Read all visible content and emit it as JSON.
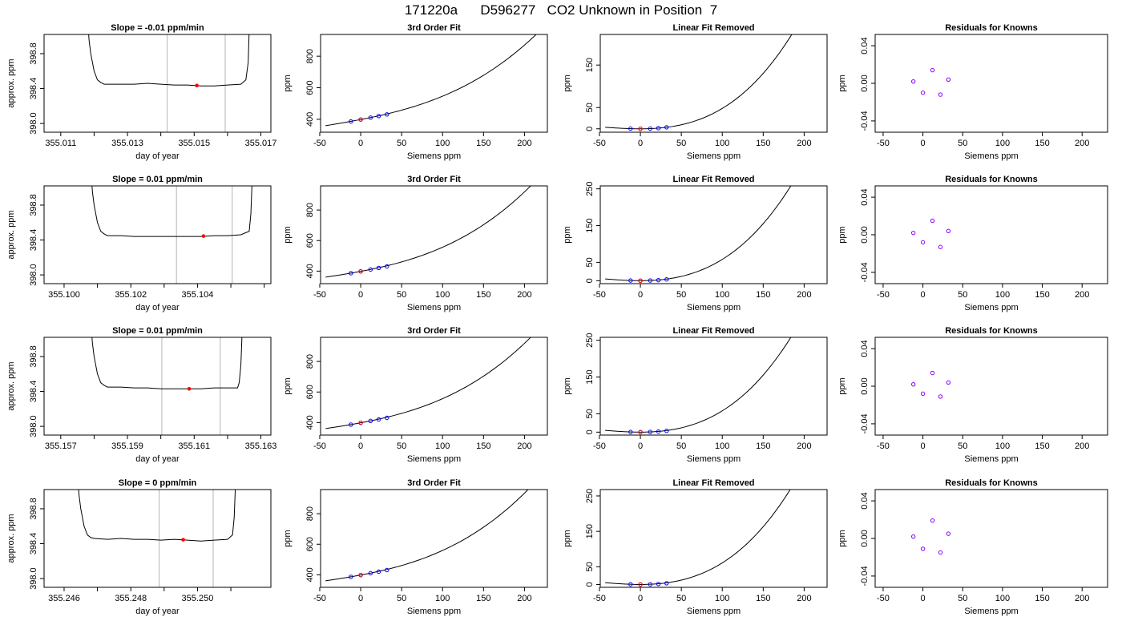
{
  "figure": {
    "title": "171220a      D596277   CO2 Unknown in Position  7"
  },
  "styles": {
    "trace_color": "#000000",
    "marker_color": "#ff0000",
    "known_color": "#0000ff",
    "residual_color": "#8800ff",
    "window_line_color": "#c0c0c0"
  },
  "chart_data": [
    {
      "id": "r1-trace",
      "type": "line",
      "title": "Slope =  -0.01  ppm/min",
      "xlabel": "day of year",
      "ylabel": "approx. ppm",
      "xlim": [
        355.0105,
        355.0173
      ],
      "ylim": [
        397.9,
        399.02
      ],
      "xticks": [
        355.011,
        355.012,
        355.013,
        355.014,
        355.015,
        355.016,
        355.017
      ],
      "xtick_labels": [
        "355.011",
        "",
        "355.013",
        "",
        "355.015",
        "",
        "355.017"
      ],
      "yticks": [
        398.0,
        398.4,
        398.8
      ],
      "ytick_labels": [
        "398.0",
        "398.4",
        "398.8"
      ],
      "window_lines": [
        355.01419,
        355.01593
      ],
      "marker": [
        355.01508,
        398.435
      ],
      "series": [
        {
          "x": [
            355.0118,
            355.01185,
            355.0119,
            355.012,
            355.0121,
            355.0122,
            355.0123,
            355.0124,
            355.0128,
            355.0132,
            355.0136,
            355.014,
            355.0144,
            355.0148,
            355.0152,
            355.0156,
            355.016,
            355.0164,
            355.01655,
            355.01662,
            355.01666
          ],
          "y": [
            399.2,
            398.95,
            398.8,
            398.6,
            398.5,
            398.47,
            398.45,
            398.45,
            398.45,
            398.45,
            398.46,
            398.45,
            398.44,
            398.44,
            398.43,
            398.43,
            398.44,
            398.45,
            398.5,
            398.7,
            399.2
          ]
        }
      ]
    },
    {
      "id": "r1-fit",
      "type": "line",
      "title": "3rd Order Fit",
      "xlabel": "Siemens ppm",
      "ylabel": "ppm",
      "xlim": [
        -49,
        228
      ],
      "ylim": [
        318,
        938
      ],
      "xticks": [
        -50,
        0,
        50,
        100,
        150,
        200
      ],
      "xtick_labels": [
        "-50",
        "0",
        "50",
        "100",
        "150",
        "200"
      ],
      "yticks": [
        400,
        600,
        800
      ],
      "ytick_labels": [
        "400",
        "600",
        "800"
      ],
      "curve": {
        "x0": -43,
        "x1": 218,
        "c0": 398.4,
        "c1": 1.0,
        "c2": 0.0028,
        "c3": 2e-05
      },
      "knowns": {
        "x": [
          -12,
          0,
          12,
          22,
          32
        ],
        "y": [
          386.4,
          398.4,
          410.4,
          420.6,
          430.8
        ]
      },
      "unknown": [
        0,
        398.4
      ]
    },
    {
      "id": "r1-linear",
      "type": "line",
      "title": "Linear Fit Removed",
      "xlabel": "Siemens ppm",
      "ylabel": "ppm",
      "xlim": [
        -49,
        228
      ],
      "ylim": [
        -8,
        222
      ],
      "xticks": [
        -50,
        0,
        50,
        100,
        150,
        200
      ],
      "xtick_labels": [
        "-50",
        "0",
        "50",
        "100",
        "150",
        "200"
      ],
      "yticks": [
        0,
        50,
        150
      ],
      "ytick_labels": [
        "0",
        "50",
        "150"
      ],
      "curve": {
        "x0": -43,
        "x1": 218,
        "c0": 0,
        "c1": 0,
        "c2": 0.0028,
        "c3": 2e-05
      },
      "knowns": {
        "x": [
          -12,
          0,
          12,
          22,
          32
        ],
        "y": [
          0.5,
          0,
          0.5,
          1.5,
          3.5
        ]
      },
      "unknown": [
        0,
        0
      ]
    },
    {
      "id": "r1-resid",
      "type": "scatter",
      "title": "Residuals for Knowns",
      "xlabel": "Siemens ppm",
      "ylabel": "ppm",
      "xlim": [
        -60,
        232
      ],
      "ylim": [
        -0.052,
        0.052
      ],
      "xticks": [
        -50,
        0,
        50,
        100,
        150,
        200
      ],
      "xtick_labels": [
        "-50",
        "0",
        "50",
        "100",
        "150",
        "200"
      ],
      "yticks": [
        -0.04,
        0.0,
        0.04
      ],
      "ytick_labels": [
        "-0.04",
        "0.00",
        "0.04"
      ],
      "points": {
        "x": [
          -12,
          0,
          12,
          22,
          32
        ],
        "y": [
          0.002,
          -0.01,
          0.014,
          -0.012,
          0.004
        ]
      }
    },
    {
      "id": "r2-trace",
      "type": "line",
      "title": "Slope =  0.01  ppm/min",
      "xlabel": "day of year",
      "ylabel": "approx. ppm",
      "xlim": [
        355.0994,
        355.1062
      ],
      "ylim": [
        397.9,
        399.02
      ],
      "xticks": [
        355.1,
        355.101,
        355.102,
        355.103,
        355.104,
        355.105,
        355.106
      ],
      "xtick_labels": [
        "355.100",
        "",
        "355.102",
        "",
        "355.104",
        "",
        ""
      ],
      "yticks": [
        398.0,
        398.4,
        398.8
      ],
      "ytick_labels": [
        "398.0",
        "398.4",
        "398.8"
      ],
      "window_lines": [
        355.10337,
        355.10504
      ],
      "marker": [
        355.10418,
        398.445
      ],
      "series": [
        {
          "x": [
            355.1008,
            355.10085,
            355.1009,
            355.101,
            355.1011,
            355.1012,
            355.1013,
            355.1017,
            355.1021,
            355.1025,
            355.1029,
            355.1033,
            355.1037,
            355.1041,
            355.1045,
            355.1049,
            355.1053,
            355.10555,
            355.1056,
            355.10565
          ],
          "y": [
            399.2,
            398.95,
            398.8,
            398.6,
            398.5,
            398.47,
            398.45,
            398.45,
            398.44,
            398.44,
            398.44,
            398.44,
            398.44,
            398.44,
            398.45,
            398.45,
            398.46,
            398.5,
            398.7,
            399.2
          ]
        }
      ]
    },
    {
      "id": "r2-fit",
      "type": "line",
      "title": "3rd Order Fit",
      "xlabel": "Siemens ppm",
      "ylabel": "ppm",
      "xlim": [
        -49,
        228
      ],
      "ylim": [
        318,
        958
      ],
      "xticks": [
        -50,
        0,
        50,
        100,
        150,
        200
      ],
      "xtick_labels": [
        "-50",
        "0",
        "50",
        "100",
        "150",
        "200"
      ],
      "yticks": [
        400,
        600,
        800
      ],
      "ytick_labels": [
        "400",
        "600",
        "800"
      ],
      "curve": {
        "x0": -43,
        "x1": 218,
        "c0": 398.4,
        "c1": 1.0,
        "c2": 0.0036,
        "c3": 2.2e-05
      },
      "knowns": {
        "x": [
          -12,
          0,
          12,
          22,
          32
        ],
        "y": [
          386.4,
          398.4,
          410.4,
          420.6,
          430.8
        ]
      },
      "unknown": [
        0,
        398.4
      ]
    },
    {
      "id": "r2-linear",
      "type": "line",
      "title": "Linear Fit Removed",
      "xlabel": "Siemens ppm",
      "ylabel": "ppm",
      "xlim": [
        -49,
        228
      ],
      "ylim": [
        -8,
        258
      ],
      "xticks": [
        -50,
        0,
        50,
        100,
        150,
        200
      ],
      "xtick_labels": [
        "-50",
        "0",
        "50",
        "100",
        "150",
        "200"
      ],
      "yticks": [
        0,
        50,
        150,
        250
      ],
      "ytick_labels": [
        "0",
        "50",
        "150",
        "250"
      ],
      "curve": {
        "x0": -43,
        "x1": 218,
        "c0": 0,
        "c1": 0,
        "c2": 0.0036,
        "c3": 2.2e-05
      },
      "knowns": {
        "x": [
          -12,
          0,
          12,
          22,
          32
        ],
        "y": [
          0.5,
          0,
          0.5,
          1.5,
          3.5
        ]
      },
      "unknown": [
        0,
        0
      ]
    },
    {
      "id": "r2-resid",
      "type": "scatter",
      "title": "Residuals for Knowns",
      "xlabel": "Siemens ppm",
      "ylabel": "ppm",
      "xlim": [
        -60,
        232
      ],
      "ylim": [
        -0.052,
        0.052
      ],
      "xticks": [
        -50,
        0,
        50,
        100,
        150,
        200
      ],
      "xtick_labels": [
        "-50",
        "0",
        "50",
        "100",
        "150",
        "200"
      ],
      "yticks": [
        -0.04,
        0.0,
        0.04
      ],
      "ytick_labels": [
        "-0.04",
        "0.00",
        "0.04"
      ],
      "points": {
        "x": [
          -12,
          0,
          12,
          22,
          32
        ],
        "y": [
          0.002,
          -0.008,
          0.015,
          -0.013,
          0.004
        ]
      }
    },
    {
      "id": "r3-trace",
      "type": "line",
      "title": "Slope =  0.01  ppm/min",
      "xlabel": "day of year",
      "ylabel": "approx. ppm",
      "xlim": [
        355.1565,
        355.1633
      ],
      "ylim": [
        397.9,
        399.02
      ],
      "xticks": [
        355.157,
        355.158,
        355.159,
        355.16,
        355.161,
        355.162,
        355.163
      ],
      "xtick_labels": [
        "355.157",
        "",
        "355.159",
        "",
        "355.161",
        "",
        "355.163"
      ],
      "yticks": [
        398.0,
        398.4,
        398.8
      ],
      "ytick_labels": [
        "398.0",
        "398.4",
        "398.8"
      ],
      "window_lines": [
        355.16003,
        355.16178
      ],
      "marker": [
        355.16085,
        398.43
      ],
      "series": [
        {
          "x": [
            355.1579,
            355.15795,
            355.158,
            355.1581,
            355.1582,
            355.1583,
            355.1584,
            355.1588,
            355.1592,
            355.1596,
            355.16,
            355.1604,
            355.1608,
            355.1612,
            355.1616,
            355.162,
            355.1623,
            355.16235,
            355.1624,
            355.16245
          ],
          "y": [
            399.2,
            398.95,
            398.8,
            398.6,
            398.5,
            398.47,
            398.45,
            398.45,
            398.44,
            398.44,
            398.43,
            398.43,
            398.43,
            398.43,
            398.44,
            398.44,
            398.44,
            398.5,
            398.7,
            399.2
          ]
        }
      ]
    },
    {
      "id": "r3-fit",
      "type": "line",
      "title": "3rd Order Fit",
      "xlabel": "Siemens ppm",
      "ylabel": "ppm",
      "xlim": [
        -49,
        228
      ],
      "ylim": [
        318,
        958
      ],
      "xticks": [
        -50,
        0,
        50,
        100,
        150,
        200
      ],
      "xtick_labels": [
        "-50",
        "0",
        "50",
        "100",
        "150",
        "200"
      ],
      "yticks": [
        400,
        600,
        800
      ],
      "ytick_labels": [
        "400",
        "600",
        "800"
      ],
      "curve": {
        "x0": -43,
        "x1": 218,
        "c0": 398.4,
        "c1": 1.0,
        "c2": 0.0036,
        "c3": 2.2e-05
      },
      "knowns": {
        "x": [
          -12,
          0,
          12,
          22,
          32
        ],
        "y": [
          386.4,
          398.4,
          410.4,
          420.6,
          430.8
        ]
      },
      "unknown": [
        0,
        398.4
      ]
    },
    {
      "id": "r3-linear",
      "type": "line",
      "title": "Linear Fit Removed",
      "xlabel": "Siemens ppm",
      "ylabel": "ppm",
      "xlim": [
        -49,
        228
      ],
      "ylim": [
        -8,
        258
      ],
      "xticks": [
        -50,
        0,
        50,
        100,
        150,
        200
      ],
      "xtick_labels": [
        "-50",
        "0",
        "50",
        "100",
        "150",
        "200"
      ],
      "yticks": [
        0,
        50,
        150,
        250
      ],
      "ytick_labels": [
        "0",
        "50",
        "150",
        "250"
      ],
      "curve": {
        "x0": -43,
        "x1": 218,
        "c0": 0,
        "c1": 0,
        "c2": 0.0036,
        "c3": 2.2e-05
      },
      "knowns": {
        "x": [
          -12,
          0,
          12,
          22,
          32
        ],
        "y": [
          0.5,
          0,
          0.5,
          1.5,
          3.5
        ]
      },
      "unknown": [
        0,
        0
      ]
    },
    {
      "id": "r3-resid",
      "type": "scatter",
      "title": "Residuals for Knowns",
      "xlabel": "Siemens ppm",
      "ylabel": "ppm",
      "xlim": [
        -60,
        232
      ],
      "ylim": [
        -0.052,
        0.052
      ],
      "xticks": [
        -50,
        0,
        50,
        100,
        150,
        200
      ],
      "xtick_labels": [
        "-50",
        "0",
        "50",
        "100",
        "150",
        "200"
      ],
      "yticks": [
        -0.04,
        0.0,
        0.04
      ],
      "ytick_labels": [
        "-0.04",
        "0.00",
        "0.04"
      ],
      "points": {
        "x": [
          -12,
          0,
          12,
          22,
          32
        ],
        "y": [
          0.002,
          -0.008,
          0.014,
          -0.011,
          0.004
        ]
      }
    },
    {
      "id": "r4-trace",
      "type": "line",
      "title": "Slope =  0  ppm/min",
      "xlabel": "day of year",
      "ylabel": "approx. ppm",
      "xlim": [
        355.2454,
        355.2522
      ],
      "ylim": [
        397.9,
        399.02
      ],
      "xticks": [
        355.246,
        355.247,
        355.248,
        355.249,
        355.25,
        355.251
      ],
      "xtick_labels": [
        "355.246",
        "",
        "355.248",
        "",
        "355.250",
        ""
      ],
      "yticks": [
        398.0,
        398.4,
        398.8
      ],
      "ytick_labels": [
        "398.0",
        "398.4",
        "398.8"
      ],
      "window_lines": [
        355.24885,
        355.25047
      ],
      "marker": [
        355.24957,
        398.445
      ],
      "series": [
        {
          "x": [
            355.2464,
            355.24645,
            355.2465,
            355.2466,
            355.2467,
            355.2468,
            355.2469,
            355.2473,
            355.2477,
            355.2481,
            355.2485,
            355.2489,
            355.2493,
            355.2497,
            355.2501,
            355.2505,
            355.2509,
            355.25105,
            355.2511,
            355.25115
          ],
          "y": [
            399.2,
            398.95,
            398.8,
            398.6,
            398.5,
            398.47,
            398.46,
            398.45,
            398.46,
            398.45,
            398.45,
            398.44,
            398.45,
            398.44,
            398.43,
            398.44,
            398.45,
            398.5,
            398.7,
            399.2
          ]
        }
      ]
    },
    {
      "id": "r4-fit",
      "type": "line",
      "title": "3rd Order Fit",
      "xlabel": "Siemens ppm",
      "ylabel": "ppm",
      "xlim": [
        -49,
        228
      ],
      "ylim": [
        318,
        958
      ],
      "xticks": [
        -50,
        0,
        50,
        100,
        150,
        200
      ],
      "xtick_labels": [
        "-50",
        "0",
        "50",
        "100",
        "150",
        "200"
      ],
      "yticks": [
        400,
        600,
        800
      ],
      "ytick_labels": [
        "400",
        "600",
        "800"
      ],
      "curve": {
        "x0": -43,
        "x1": 218,
        "c0": 398.4,
        "c1": 1.0,
        "c2": 0.0038,
        "c3": 2.3e-05
      },
      "knowns": {
        "x": [
          -12,
          0,
          12,
          22,
          32
        ],
        "y": [
          386.4,
          398.4,
          410.4,
          420.6,
          430.8
        ]
      },
      "unknown": [
        0,
        398.4
      ]
    },
    {
      "id": "r4-linear",
      "type": "line",
      "title": "Linear Fit Removed",
      "xlabel": "Siemens ppm",
      "ylabel": "ppm",
      "xlim": [
        -49,
        228
      ],
      "ylim": [
        -8,
        268
      ],
      "xticks": [
        -50,
        0,
        50,
        100,
        150,
        200
      ],
      "xtick_labels": [
        "-50",
        "0",
        "50",
        "100",
        "150",
        "200"
      ],
      "yticks": [
        0,
        50,
        150,
        250
      ],
      "ytick_labels": [
        "0",
        "50",
        "150",
        "250"
      ],
      "curve": {
        "x0": -43,
        "x1": 218,
        "c0": 0,
        "c1": 0,
        "c2": 0.0038,
        "c3": 2.3e-05
      },
      "knowns": {
        "x": [
          -12,
          0,
          12,
          22,
          32
        ],
        "y": [
          0.5,
          0,
          0.5,
          1.5,
          3.5
        ]
      },
      "unknown": [
        0,
        0
      ]
    },
    {
      "id": "r4-resid",
      "type": "scatter",
      "title": "Residuals for Knowns",
      "xlabel": "Siemens ppm",
      "ylabel": "ppm",
      "xlim": [
        -60,
        232
      ],
      "ylim": [
        -0.052,
        0.052
      ],
      "xticks": [
        -50,
        0,
        50,
        100,
        150,
        200
      ],
      "xtick_labels": [
        "-50",
        "0",
        "50",
        "100",
        "150",
        "200"
      ],
      "yticks": [
        -0.04,
        0.0,
        0.04
      ],
      "ytick_labels": [
        "-0.04",
        "0.00",
        "0.04"
      ],
      "points": {
        "x": [
          -12,
          0,
          12,
          22,
          32
        ],
        "y": [
          0.002,
          -0.011,
          0.019,
          -0.015,
          0.005
        ]
      }
    }
  ]
}
